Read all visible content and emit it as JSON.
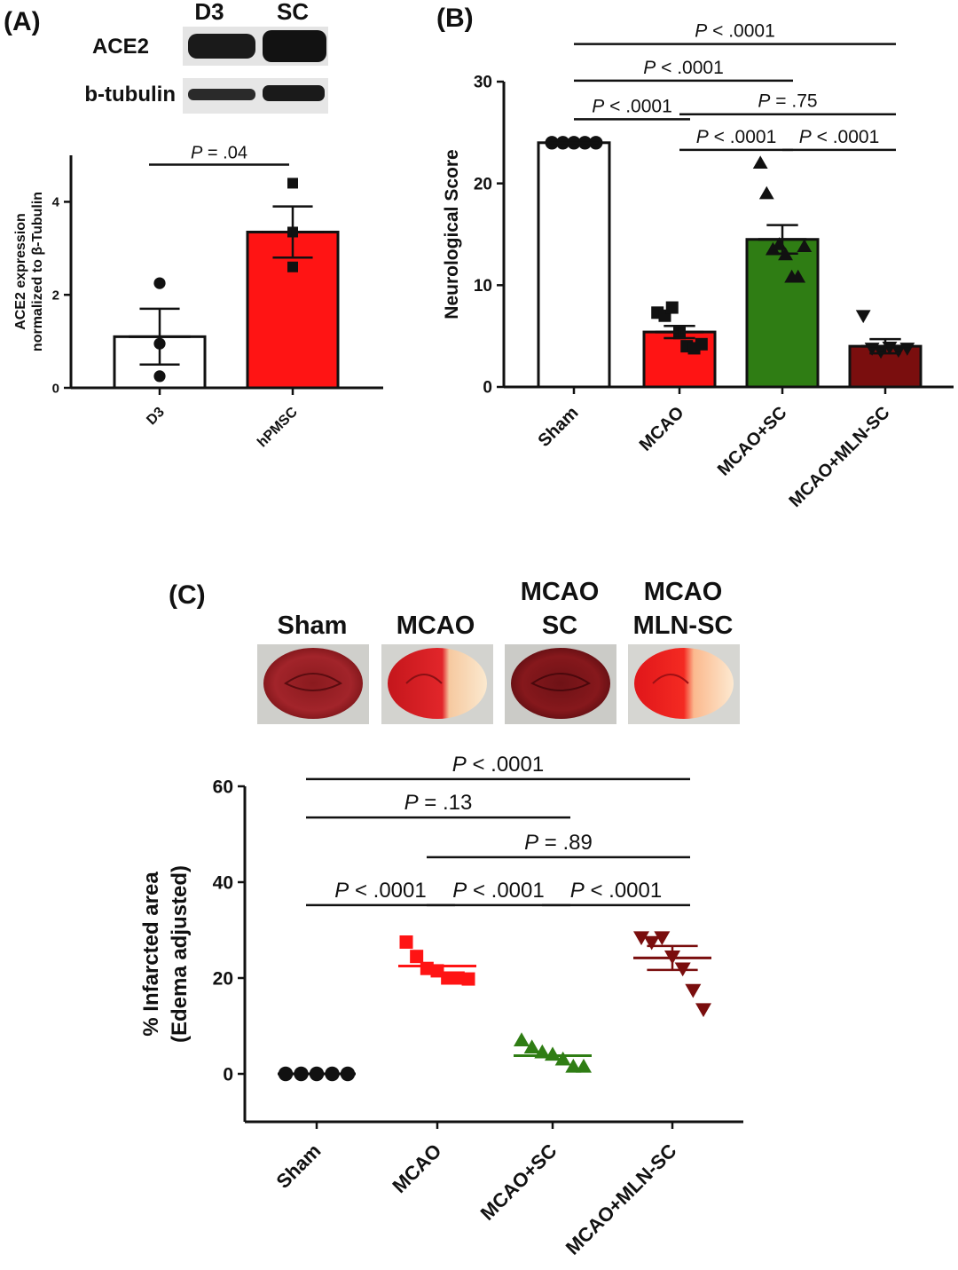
{
  "panels": {
    "a": {
      "label": "(A)",
      "blot": {
        "lanes": [
          "D3",
          "SC"
        ],
        "rows": [
          "ACE2",
          "b-tubulin"
        ]
      }
    },
    "b": {
      "label": "(B)"
    },
    "c": {
      "label": "(C)",
      "brain_headers": [
        [
          "Sham"
        ],
        [
          "MCAO"
        ],
        [
          "MCAO",
          "SC"
        ],
        [
          "MCAO",
          "MLN-SC"
        ]
      ]
    }
  },
  "chart_data": [
    {
      "id": "a",
      "type": "bar",
      "ylabel": [
        "ACE2 expression",
        "normalized to β-Tubulin"
      ],
      "ylim": [
        0,
        5
      ],
      "yticks": [
        0,
        2,
        4
      ],
      "categories": [
        "D3",
        "hPMSC"
      ],
      "values": [
        1.1,
        3.35
      ],
      "sem": [
        0.6,
        0.55
      ],
      "colors": [
        "#ffffff",
        "#ff1414"
      ],
      "points": [
        [
          2.25,
          0.95,
          0.25
        ],
        [
          4.4,
          3.35,
          2.6
        ]
      ],
      "markers": [
        "circle",
        "square"
      ],
      "significance": [
        {
          "from": 0,
          "to": 1,
          "text": "P = .04",
          "y": 4.8
        }
      ]
    },
    {
      "id": "b",
      "type": "bar",
      "ylabel": [
        "Neurological Score"
      ],
      "ylim": [
        0,
        30
      ],
      "yticks": [
        0,
        10,
        20,
        30
      ],
      "categories": [
        "Sham",
        "MCAO",
        "MCAO+SC",
        "MCAO+MLN-SC"
      ],
      "values": [
        24,
        5.4,
        14.5,
        4.0
      ],
      "sem": [
        0,
        0.6,
        1.4,
        0.7
      ],
      "colors": [
        "#ffffff",
        "#ff1414",
        "#2f7d14",
        "#7a0e0e"
      ],
      "points": [
        [
          24,
          24,
          24,
          24,
          24
        ],
        [
          7.3,
          7.0,
          7.8,
          5.3,
          4.0,
          3.8,
          4.2
        ],
        [
          22,
          19,
          13.5,
          14,
          13,
          10.8,
          10.8,
          13.8
        ],
        [
          7.0,
          3.8,
          3.5,
          3.9,
          3.6,
          3.8
        ]
      ],
      "markers": [
        "circle",
        "square",
        "triangle-up",
        "triangle-down"
      ],
      "significance": [
        {
          "from": 0,
          "to": 3,
          "text": "P < .0001",
          "y": 33.7
        },
        {
          "from": 0,
          "to": 2,
          "text": "P < .0001",
          "y": 30.1
        },
        {
          "from": 0,
          "to": 1,
          "text": "P < .0001",
          "y": 26.3
        },
        {
          "from": 1,
          "to": 3,
          "text": "P = .75",
          "y": 26.8
        },
        {
          "from": 1,
          "to": 2,
          "text": "P < .0001",
          "y": 23.3
        },
        {
          "from": 2,
          "to": 3,
          "text": "P < .0001",
          "y": 23.3
        }
      ]
    },
    {
      "id": "c",
      "type": "scatter",
      "ylabel": [
        "% Infarcted area",
        "(Edema adjusted)"
      ],
      "ylim": [
        -10,
        60
      ],
      "yticks": [
        0,
        20,
        40,
        60
      ],
      "categories": [
        "Sham",
        "MCAO",
        "MCAO+SC",
        "MCAO+MLN-SC"
      ],
      "means": [
        0,
        22.5,
        3.8,
        24.2
      ],
      "sem": [
        0,
        0,
        0,
        2.5
      ],
      "colors": [
        "#111111",
        "#ff1414",
        "#2f7d14",
        "#7a0e0e"
      ],
      "points": [
        [
          0,
          0,
          0,
          0,
          0
        ],
        [
          27.5,
          24.5,
          22.0,
          21.5,
          20.0,
          20.0,
          19.8
        ],
        [
          7.0,
          5.5,
          4.5,
          4.0,
          3.0,
          1.5,
          1.5
        ],
        [
          28.5,
          27.5,
          28.5,
          24.5,
          22.0,
          17.5,
          13.5
        ]
      ],
      "markers": [
        "circle",
        "square",
        "triangle-up",
        "triangle-down"
      ],
      "significance": [
        {
          "from": 0,
          "to": 3,
          "text": "P < .0001",
          "y": 61.5
        },
        {
          "from": 0,
          "to": 2,
          "text": "P = .13",
          "y": 53.5
        },
        {
          "from": 1,
          "to": 3,
          "text": "P = .89",
          "y": 45.2
        },
        {
          "from": 0,
          "to": 1,
          "text": "P < .0001",
          "y": 35.2
        },
        {
          "from": 1,
          "to": 2,
          "text": "P < .0001",
          "y": 35.2
        },
        {
          "from": 2,
          "to": 3,
          "text": "P < .0001",
          "y": 35.2
        }
      ]
    }
  ]
}
